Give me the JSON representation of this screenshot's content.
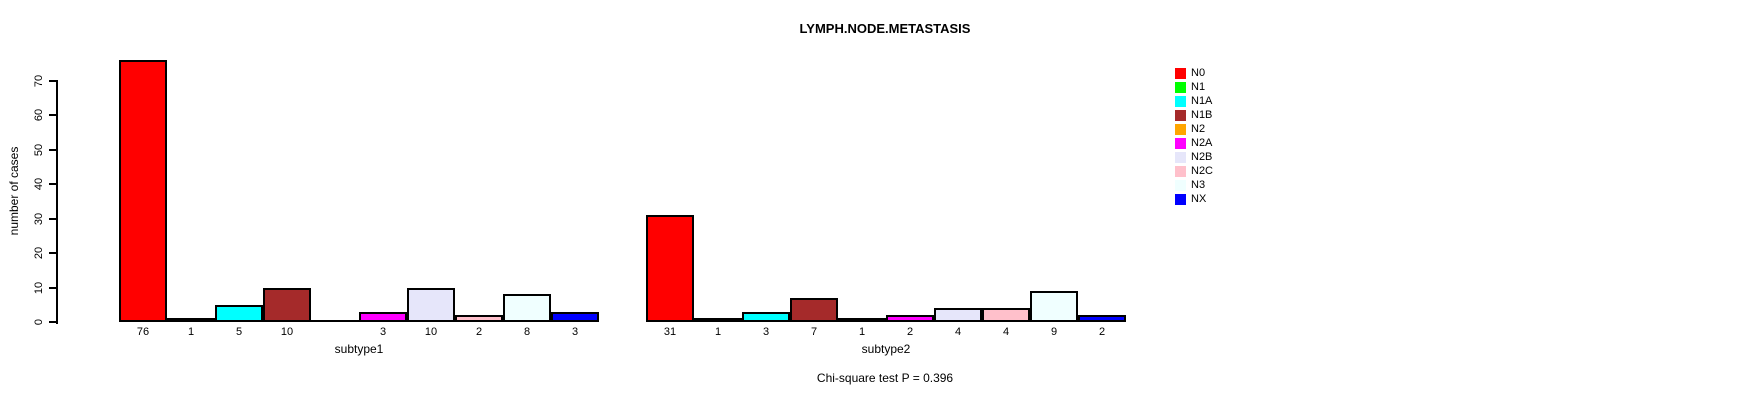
{
  "chart_data": {
    "type": "bar",
    "title": "LYMPH.NODE.METASTASIS",
    "ylabel": "number of cases",
    "xlabel": "",
    "ylim": [
      0,
      70
    ],
    "yticks": [
      0,
      10,
      20,
      30,
      40,
      50,
      60,
      70
    ],
    "grid": false,
    "legend_position": "right",
    "categories": [
      "N0",
      "N1",
      "N1A",
      "N1B",
      "N2",
      "N2A",
      "N2B",
      "N2C",
      "N3",
      "NX"
    ],
    "legend": [
      {
        "label": "N0",
        "color": "#FF0000"
      },
      {
        "label": "N1",
        "color": "#00FF00"
      },
      {
        "label": "N1A",
        "color": "#00FFFF"
      },
      {
        "label": "N1B",
        "color": "#A52A2A"
      },
      {
        "label": "N2",
        "color": "#FFA500"
      },
      {
        "label": "N2A",
        "color": "#FF00FF"
      },
      {
        "label": "N2B",
        "color": "#E6E6FA"
      },
      {
        "label": "N2C",
        "color": "#FFC0CB"
      },
      {
        "label": "N3",
        "color": "#F0FFFF"
      },
      {
        "label": "NX",
        "color": "#0000FF"
      }
    ],
    "groups": [
      {
        "label": "subtype1",
        "values": [
          76,
          1,
          5,
          10,
          0,
          3,
          10,
          2,
          8,
          3
        ],
        "bar_labels": [
          "76",
          "1",
          "5",
          "10",
          "",
          "3",
          "10",
          "2",
          "8",
          "3"
        ]
      },
      {
        "label": "subtype2",
        "values": [
          31,
          1,
          3,
          7,
          1,
          2,
          4,
          4,
          9,
          2
        ],
        "bar_labels": [
          "31",
          "1",
          "3",
          "7",
          "1",
          "2",
          "4",
          "4",
          "9",
          "2"
        ]
      }
    ],
    "annotation": "Chi-square test P = 0.396",
    "axis_color": "#000000",
    "bar_border_color": "#000000"
  }
}
